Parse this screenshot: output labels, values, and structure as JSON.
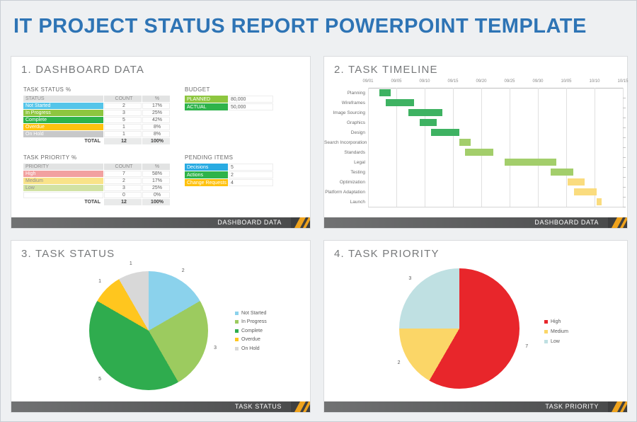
{
  "page": {
    "title": "IT PROJECT STATUS REPORT POWERPOINT TEMPLATE"
  },
  "theme": {
    "title_color": "#2E74B5",
    "page_bg": "#EEF0F2",
    "panel_bg": "#FFFFFF",
    "footer_bar_dark": "#4A4B4C",
    "footer_accent_gold": "#EFA31D",
    "footer_text_color": "#FFFFFF"
  },
  "panels": {
    "dashboard": {
      "heading": "1. DASHBOARD DATA",
      "footer": "DASHBOARD DATA",
      "task_status": {
        "title": "TASK STATUS %",
        "headers": [
          "STATUS",
          "COUNT",
          "%"
        ],
        "rows": [
          {
            "label": "Not Started",
            "count": "2",
            "pct": "17%",
            "color": "#55C5E9",
            "text_color": "#FFFFFF"
          },
          {
            "label": "In Progress",
            "count": "3",
            "pct": "25%",
            "color": "#8DC63F",
            "text_color": "#FFFFFF"
          },
          {
            "label": "Complete",
            "count": "5",
            "pct": "42%",
            "color": "#2EB34A",
            "text_color": "#FFFFFF"
          },
          {
            "label": "Overdue",
            "count": "1",
            "pct": "8%",
            "color": "#FFC20E",
            "text_color": "#FFFFFF"
          },
          {
            "label": "On Hold",
            "count": "1",
            "pct": "8%",
            "color": "#C7C8C9",
            "text_color": "#FFFFFF"
          }
        ],
        "total": {
          "label": "TOTAL",
          "count": "12",
          "pct": "100%"
        }
      },
      "budget": {
        "title": "BUDGET",
        "rows": [
          {
            "label": "PLANNED",
            "value": "80,000",
            "color": "#8DC63F"
          },
          {
            "label": "ACTUAL",
            "value": "50,000",
            "color": "#2EB34A"
          }
        ]
      },
      "task_priority": {
        "title": "TASK PRIORITY %",
        "headers": [
          "PRIORITY",
          "COUNT",
          "%"
        ],
        "rows": [
          {
            "label": "High",
            "count": "7",
            "pct": "58%",
            "color": "#F2A1A0",
            "text_color": "#FFFFFF"
          },
          {
            "label": "Medium",
            "count": "2",
            "pct": "17%",
            "color": "#F9E389",
            "text_color": "#8F8F8F"
          },
          {
            "label": "Low",
            "count": "3",
            "pct": "25%",
            "color": "#D2E2A4",
            "text_color": "#8F8F8F"
          },
          {
            "label": "",
            "count": "0",
            "pct": "0%",
            "color": "",
            "text_color": ""
          }
        ],
        "total": {
          "label": "TOTAL",
          "count": "12",
          "pct": "100%"
        }
      },
      "pending": {
        "title": "PENDING ITEMS",
        "rows": [
          {
            "label": "Decisions",
            "value": "5",
            "color": "#29ABE2"
          },
          {
            "label": "Actions",
            "value": "2",
            "color": "#2EB34A"
          },
          {
            "label": "Change Requests",
            "value": "4",
            "color": "#FFC20E"
          }
        ]
      }
    },
    "timeline": {
      "heading": "2. TASK TIMELINE",
      "footer": "DASHBOARD DATA"
    },
    "task_status": {
      "heading": "3. TASK STATUS",
      "footer": "TASK STATUS"
    },
    "task_priority": {
      "heading": "4. TASK PRIORITY",
      "footer": "TASK PRIORITY"
    }
  },
  "chart_data": [
    {
      "type": "gantt",
      "title": "2. TASK TIMELINE",
      "x_ticks": [
        "09/01",
        "09/05",
        "09/10",
        "09/15",
        "09/20",
        "09/25",
        "09/30",
        "10/05",
        "10/10",
        "10/15"
      ],
      "axis_unit": "tick-interval (positions measured in gridline spacings from 09/01)",
      "tasks": [
        {
          "label": "Planning",
          "start": "09/03",
          "end": "09/04",
          "start_u": 0.4,
          "end_u": 0.81,
          "color": "#3EB262"
        },
        {
          "label": "Wireframes",
          "start": "09/04",
          "end": "09/08",
          "start_u": 0.63,
          "end_u": 1.62,
          "color": "#3EB262"
        },
        {
          "label": "Image Sourcing",
          "start": "09/07",
          "end": "09/13",
          "start_u": 1.42,
          "end_u": 2.62,
          "color": "#3EB262"
        },
        {
          "label": "Graphics",
          "start": "09/09",
          "end": "09/12",
          "start_u": 1.82,
          "end_u": 2.42,
          "color": "#3EB262"
        },
        {
          "label": "Design",
          "start": "09/11",
          "end": "09/16",
          "start_u": 2.22,
          "end_u": 3.22,
          "color": "#3EB262"
        },
        {
          "label": "Search Incorporation",
          "start": "09/16",
          "end": "09/18",
          "start_u": 3.22,
          "end_u": 3.62,
          "color": "#A3CE6B"
        },
        {
          "label": "Standards",
          "start": "09/17",
          "end": "09/22",
          "start_u": 3.43,
          "end_u": 4.43,
          "color": "#A3CE6B"
        },
        {
          "label": "Legal",
          "start": "09/25",
          "end": "10/03",
          "start_u": 4.82,
          "end_u": 6.65,
          "color": "#A3CE6B"
        },
        {
          "label": "Testing",
          "start": "10/02",
          "end": "10/06",
          "start_u": 6.46,
          "end_u": 7.24,
          "color": "#A3CE6B"
        },
        {
          "label": "Optimization",
          "start": "10/05",
          "end": "10/08",
          "start_u": 7.06,
          "end_u": 7.66,
          "color": "#FADC7E"
        },
        {
          "label": "Platform Adaptation",
          "start": "10/06",
          "end": "10/10",
          "start_u": 7.27,
          "end_u": 8.07,
          "color": "#FADC7E"
        },
        {
          "label": "Launch",
          "start": "10/10",
          "end": "10/11",
          "start_u": 8.07,
          "end_u": 8.25,
          "color": "#FADC7E"
        }
      ]
    },
    {
      "type": "pie",
      "title": "3. TASK STATUS",
      "labels": [
        "Not Started",
        "In Progress",
        "Complete",
        "Overdue",
        "On Hold"
      ],
      "values": [
        2,
        3,
        5,
        1,
        1
      ],
      "colors": [
        "#8BD2EC",
        "#9CCB5F",
        "#2FAC4E",
        "#FFC61E",
        "#D8D8D8"
      ],
      "legend_position": "right",
      "data_labels": "outside, raw counts"
    },
    {
      "type": "pie",
      "title": "4. TASK PRIORITY",
      "labels": [
        "High",
        "Medium",
        "Low"
      ],
      "values": [
        7,
        2,
        3
      ],
      "colors": [
        "#E8262B",
        "#FBD667",
        "#BFE0E2"
      ],
      "legend_position": "right",
      "data_labels": "outside, raw counts"
    }
  ]
}
